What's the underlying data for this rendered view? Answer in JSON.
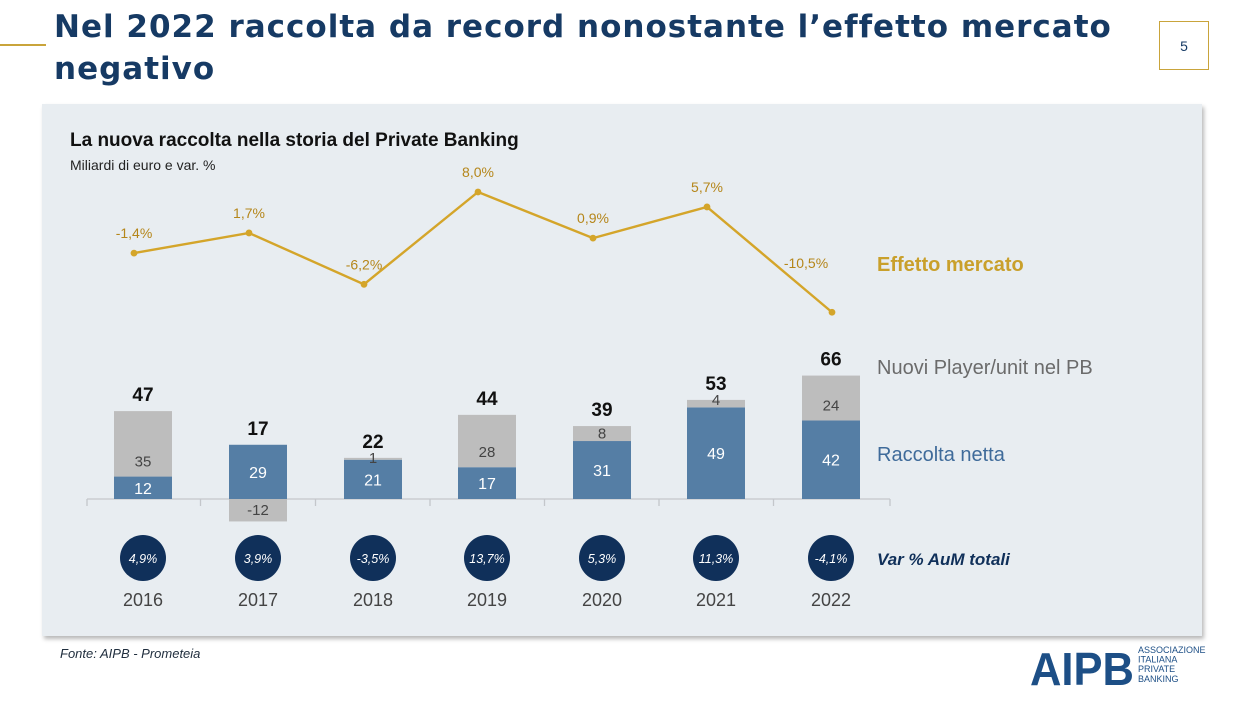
{
  "slide": {
    "title": "Nel 2022 raccolta da record nonostante l’effetto mercato negativo",
    "page_number": "5",
    "source": "Fonte: AIPB - Prometeia"
  },
  "logo": {
    "text": "AIPB",
    "subtitle_lines": [
      "ASSOCIAZIONE",
      "ITALIANA",
      "PRIVATE",
      "BANKING"
    ]
  },
  "colors": {
    "title": "#163a64",
    "accent_gold": "#c9a43b",
    "market_line": "#d4a52a",
    "net_bar": "#557ea5",
    "new_player_bar": "#bdbdbd",
    "circle": "#10305a",
    "panel_bg": "#e8edf1"
  },
  "chart_data": {
    "type": "bar",
    "stacked": true,
    "title": "La nuova raccolta nella storia del Private Banking",
    "subtitle": "Miliardi di euro e var. %",
    "categories": [
      "2016",
      "2017",
      "2018",
      "2019",
      "2020",
      "2021",
      "2022"
    ],
    "series": [
      {
        "name": "Raccolta netta",
        "values": [
          12,
          29,
          21,
          17,
          31,
          49,
          42
        ],
        "labels": [
          "12",
          "29",
          "21",
          "17",
          "31",
          "49",
          "42"
        ]
      },
      {
        "name": "Nuovi Player/unit nel PB",
        "values": [
          35,
          -12,
          1,
          28,
          8,
          4,
          24
        ],
        "labels": [
          "35",
          "-12",
          "1",
          "28",
          "8",
          "4",
          "24"
        ]
      }
    ],
    "totals": [
      47,
      17,
      22,
      44,
      39,
      53,
      66
    ],
    "total_labels": [
      "47",
      "17",
      "22",
      "44",
      "39",
      "53",
      "66"
    ],
    "market_effect": {
      "name": "Effetto mercato",
      "values": [
        -1.4,
        1.7,
        -6.2,
        8.0,
        0.9,
        5.7,
        -10.5
      ],
      "labels": [
        "-1,4%",
        "1,7%",
        "-6,2%",
        "8,0%",
        "0,9%",
        "5,7%",
        "-10,5%"
      ]
    },
    "aum_change": {
      "name": "Var % AuM totali",
      "values": [
        4.9,
        3.9,
        -3.5,
        13.7,
        5.3,
        11.3,
        -4.1
      ],
      "labels": [
        "4,9%",
        "3,9%",
        "-3,5%",
        "13,7%",
        "5,3%",
        "11,3%",
        "-4,1%"
      ]
    }
  }
}
